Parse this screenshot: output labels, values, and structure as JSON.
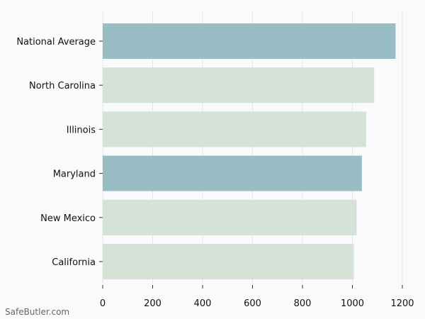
{
  "chart_data": {
    "type": "bar",
    "orientation": "horizontal",
    "categories": [
      "National Average",
      "North Carolina",
      "Illinois",
      "Maryland",
      "New Mexico",
      "California"
    ],
    "values": [
      1173,
      1087,
      1055,
      1038,
      1017,
      1006
    ],
    "bar_colors": [
      "#98bdc5",
      "#d5e2d8",
      "#d5e2d8",
      "#98bdc5",
      "#d5e2d8",
      "#d5e2d8"
    ],
    "xlim": [
      0,
      1250
    ],
    "xticks": [
      0,
      200,
      400,
      600,
      800,
      1000,
      1200
    ],
    "grid": "vertical",
    "title": "",
    "xlabel": "",
    "ylabel": ""
  },
  "watermark": "SafeButler.com"
}
